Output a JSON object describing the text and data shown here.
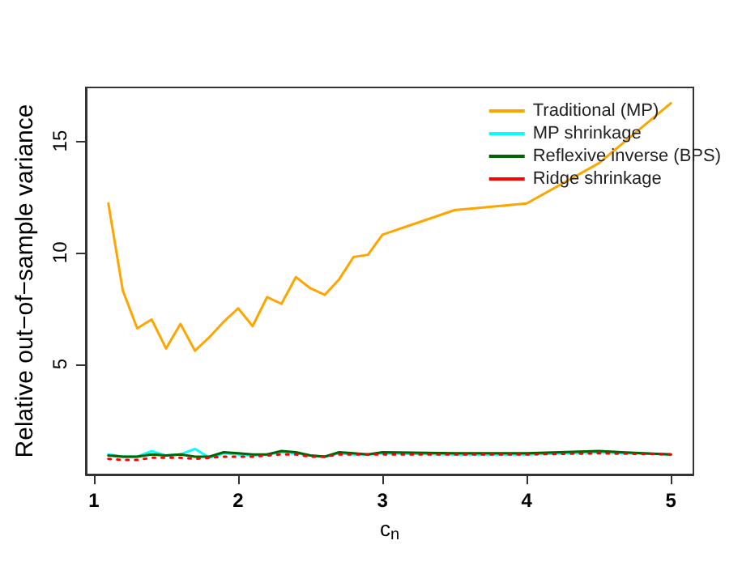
{
  "chart_data": {
    "type": "line",
    "xlabel": "c$_{n}$",
    "ylabel": "Relative out−of−sample variance",
    "x": [
      1.1,
      1.2,
      1.3,
      1.4,
      1.5,
      1.6,
      1.7,
      1.8,
      1.9,
      2.0,
      2.1,
      2.2,
      2.3,
      2.4,
      2.5,
      2.6,
      2.7,
      2.8,
      2.9,
      3.0,
      3.5,
      4.0,
      4.5,
      5.0
    ],
    "series": [
      {
        "name": "Traditional (MP)",
        "color": "#ffa500",
        "line_style": "solid",
        "values": [
          12.2,
          8.3,
          6.6,
          7.0,
          5.7,
          6.8,
          5.6,
          6.2,
          6.9,
          7.5,
          6.7,
          8.0,
          7.7,
          8.9,
          8.4,
          8.1,
          8.8,
          9.8,
          9.9,
          10.8,
          11.9,
          12.2,
          14.0,
          16.7
        ]
      },
      {
        "name": "MP shrinkage",
        "color": "#00ffff",
        "line_style": "solid",
        "values": [
          0.95,
          0.85,
          0.85,
          1.1,
          0.9,
          0.95,
          1.2,
          0.8,
          1.0,
          0.95,
          0.9,
          0.95,
          1.05,
          1.0,
          0.9,
          0.85,
          1.0,
          0.95,
          0.95,
          1.0,
          0.95,
          0.95,
          1.05,
          0.95
        ]
      },
      {
        "name": "Reflexive inverse (BPS)",
        "color": "#006400",
        "line_style": "solid",
        "values": [
          0.9,
          0.85,
          0.85,
          0.95,
          0.9,
          0.95,
          0.85,
          0.85,
          1.05,
          1.0,
          0.95,
          0.95,
          1.1,
          1.05,
          0.9,
          0.85,
          1.05,
          1.0,
          0.95,
          1.05,
          1.0,
          1.0,
          1.1,
          0.95
        ]
      },
      {
        "name": "Ridge shrinkage",
        "color": "#ff0000",
        "line_style": "dotted",
        "values": [
          0.75,
          0.7,
          0.7,
          0.8,
          0.8,
          0.8,
          0.75,
          0.8,
          0.85,
          0.85,
          0.85,
          0.9,
          0.95,
          0.95,
          0.85,
          0.85,
          0.95,
          0.95,
          0.95,
          0.95,
          0.95,
          0.95,
          1.0,
          0.95
        ]
      }
    ],
    "xlim": [
      0.944,
      5.156
    ],
    "xticks": [
      1,
      2,
      3,
      4,
      5
    ],
    "ylim": [
      0.05,
      17.4
    ],
    "yticks": [
      5,
      10,
      15
    ],
    "legend": "top right",
    "grid": false,
    "marker": "none"
  }
}
